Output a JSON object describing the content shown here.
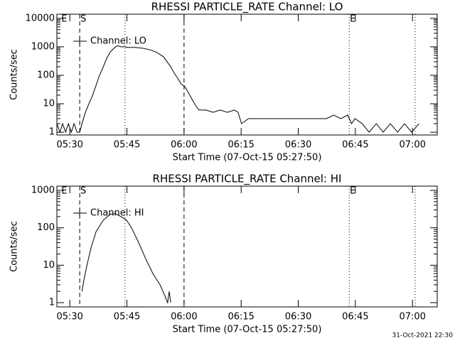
{
  "chart_data": [
    {
      "type": "line",
      "title": "RHESSI PARTICLE_RATE Channel: LO",
      "xlabel": "Start Time (07-Oct-15 05:27:50)",
      "ylabel": "Counts/sec",
      "log_y": true,
      "legend": "upper left",
      "ylim": [
        0.8,
        14000
      ],
      "yticks": [
        1,
        10,
        100,
        1000,
        10000
      ],
      "xlim": [
        326.6,
        426.5
      ],
      "xticks": [
        {
          "value": 330,
          "label": "05:30"
        },
        {
          "value": 345,
          "label": "05:45"
        },
        {
          "value": 360,
          "label": "06:00"
        },
        {
          "value": 375,
          "label": "06:15"
        },
        {
          "value": 390,
          "label": "06:30"
        },
        {
          "value": 405,
          "label": "06:45"
        },
        {
          "value": 420,
          "label": "07:00"
        }
      ],
      "vlines": [
        {
          "x": 332.6,
          "style": "dashed"
        },
        {
          "x": 360.0,
          "style": "dashed"
        },
        {
          "x": 344.5,
          "style": "dotted"
        },
        {
          "x": 403.4,
          "style": "dotted"
        },
        {
          "x": 420.7,
          "style": "dotted"
        }
      ],
      "markers": [
        {
          "x": 327.6,
          "label": "E"
        },
        {
          "x": 332.6,
          "label": "S"
        },
        {
          "x": 403.4,
          "label": "E"
        }
      ],
      "series": [
        {
          "name": "Channel: LO",
          "color": "#000000",
          "x": [
            326.6,
            327.4,
            328.1,
            328.9,
            329.6,
            330.4,
            331.1,
            331.9,
            332.6,
            333.4,
            334.1,
            335.0,
            336.0,
            336.9,
            337.8,
            338.8,
            339.7,
            340.6,
            341.6,
            342.5,
            343.4,
            344.3,
            345.3,
            347.1,
            349.0,
            350.9,
            352.7,
            354.6,
            356.5,
            357.4,
            358.3,
            359.2,
            360.2,
            361.1,
            362.0,
            363.0,
            363.9,
            365.8,
            367.6,
            369.5,
            371.4,
            373.2,
            374.2,
            375.1,
            376.9,
            380.7,
            386.3,
            391.9,
            397.4,
            399.3,
            401.2,
            403.0,
            404.0,
            404.9,
            406.8,
            408.6,
            410.5,
            412.3,
            414.2,
            416.1,
            417.9,
            419.8,
            421.7
          ],
          "values": [
            2,
            1,
            2,
            1,
            2,
            1,
            2,
            1,
            1,
            2.5,
            5,
            10,
            20,
            45,
            100,
            200,
            400,
            650,
            900,
            1100,
            1000,
            1000,
            950,
            950,
            900,
            800,
            650,
            450,
            200,
            120,
            80,
            50,
            40,
            25,
            15,
            9,
            6,
            6,
            5,
            6,
            5,
            6,
            5,
            2,
            3,
            3,
            3,
            3,
            3,
            4,
            3,
            4,
            2,
            3,
            2,
            1,
            2,
            1,
            2,
            1,
            2,
            1,
            2
          ]
        }
      ]
    },
    {
      "type": "line",
      "title": "RHESSI PARTICLE_RATE Channel: HI",
      "xlabel": "Start Time (07-Oct-15 05:27:50)",
      "ylabel": "Counts/sec",
      "log_y": true,
      "legend": "upper left",
      "ylim": [
        0.77,
        1300
      ],
      "yticks": [
        1,
        10,
        100,
        1000
      ],
      "xlim": [
        326.6,
        426.5
      ],
      "xticks": [
        {
          "value": 330,
          "label": "05:30"
        },
        {
          "value": 345,
          "label": "05:45"
        },
        {
          "value": 360,
          "label": "06:00"
        },
        {
          "value": 375,
          "label": "06:15"
        },
        {
          "value": 390,
          "label": "06:30"
        },
        {
          "value": 405,
          "label": "06:45"
        },
        {
          "value": 420,
          "label": "07:00"
        }
      ],
      "vlines": [
        {
          "x": 332.6,
          "style": "dashed"
        },
        {
          "x": 360.0,
          "style": "dashed"
        },
        {
          "x": 344.5,
          "style": "dotted"
        },
        {
          "x": 403.4,
          "style": "dotted"
        },
        {
          "x": 420.7,
          "style": "dotted"
        }
      ],
      "markers": [
        {
          "x": 327.6,
          "label": "E"
        },
        {
          "x": 332.6,
          "label": "S"
        },
        {
          "x": 403.4,
          "label": "E"
        }
      ],
      "series": [
        {
          "name": "Channel: HI",
          "color": "#000000",
          "x": [
            333.2,
            333.7,
            334.5,
            335.6,
            336.9,
            338.8,
            340.6,
            341.9,
            343.4,
            344.9,
            346.2,
            348.1,
            349.9,
            351.8,
            353.7,
            355.0,
            355.7,
            356.1,
            356.5
          ],
          "values": [
            2,
            4,
            10,
            30,
            80,
            160,
            230,
            240,
            200,
            160,
            100,
            40,
            15,
            6,
            3,
            1.5,
            1,
            2,
            1
          ]
        }
      ]
    }
  ],
  "timestamp": "31-Oct-2021 22:30"
}
